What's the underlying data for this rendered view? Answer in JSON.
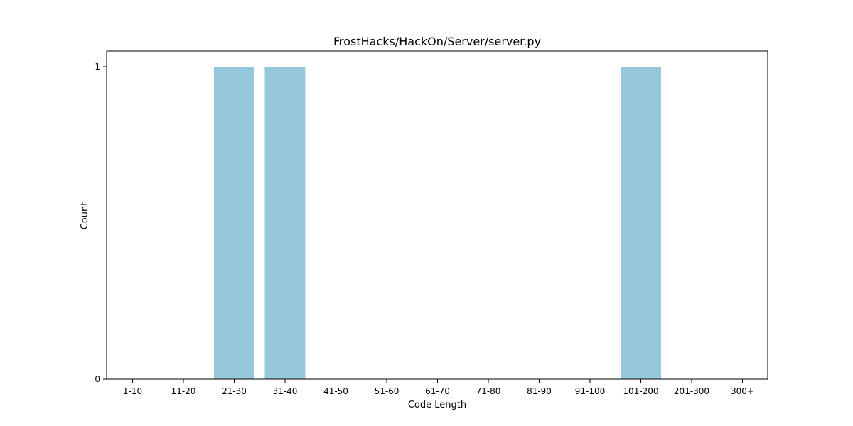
{
  "chart_data": {
    "type": "bar",
    "title": "FrostHacks/HackOn/Server/server.py",
    "xlabel": "Code Length",
    "ylabel": "Count",
    "categories": [
      "1-10",
      "11-20",
      "21-30",
      "31-40",
      "41-50",
      "51-60",
      "61-70",
      "71-80",
      "81-90",
      "91-100",
      "101-200",
      "201-300",
      "300+"
    ],
    "values": [
      0,
      0,
      1,
      1,
      0,
      0,
      0,
      0,
      0,
      0,
      1,
      0,
      0
    ],
    "ylim": [
      0,
      1.05
    ],
    "yticks": [
      0,
      1
    ],
    "bar_color": "#96c8dc",
    "grid": false,
    "legend": "none"
  }
}
